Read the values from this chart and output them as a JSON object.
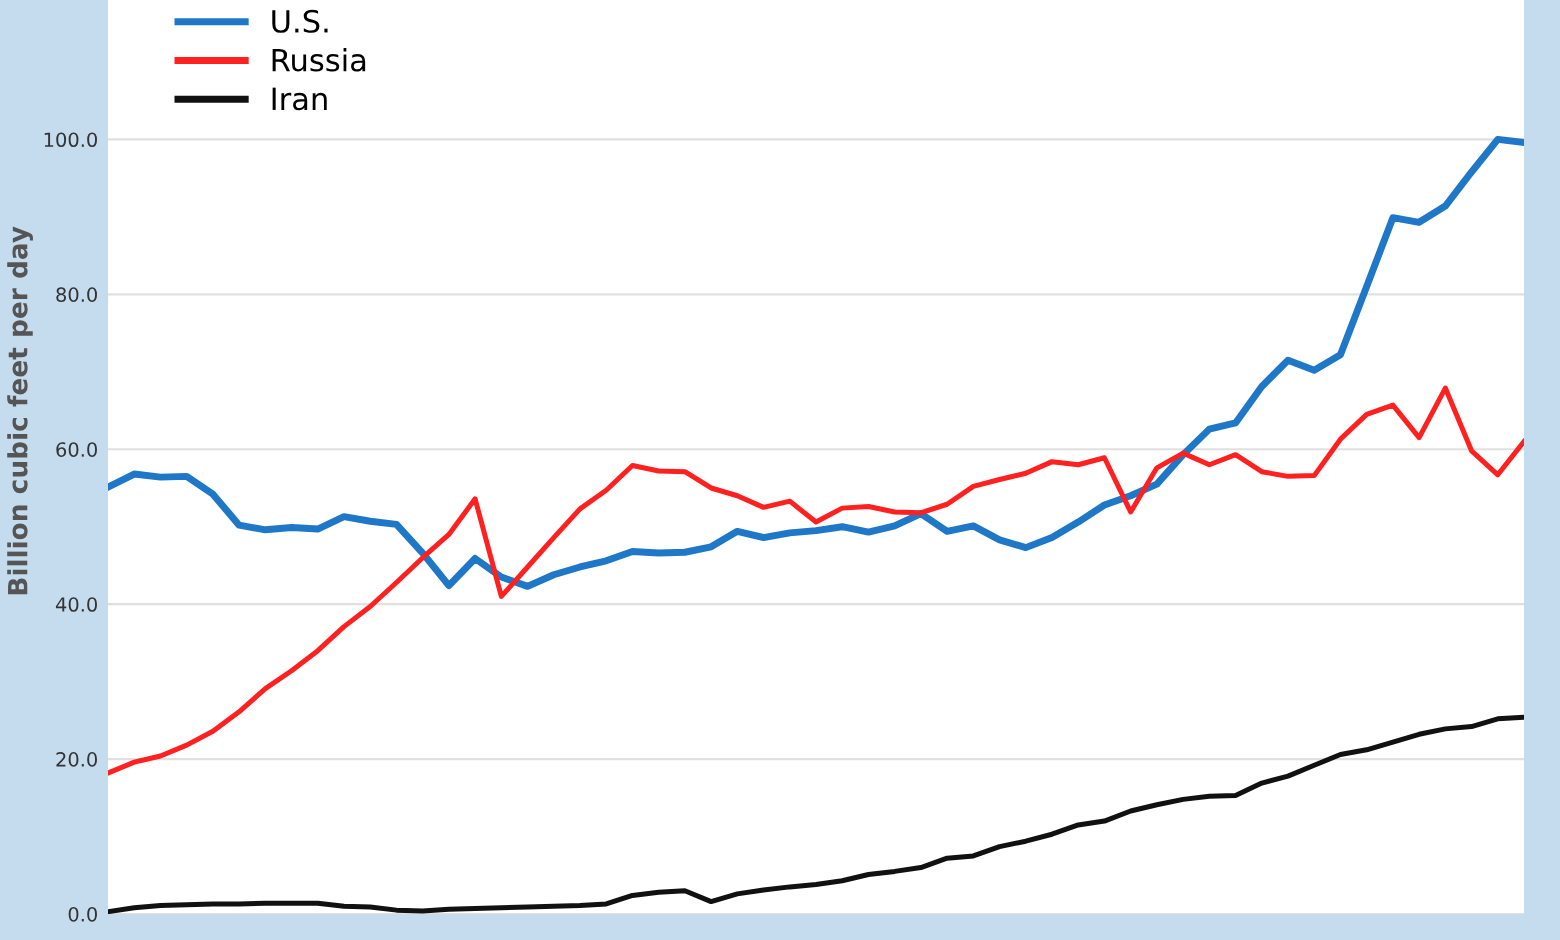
{
  "chart_data": {
    "type": "line",
    "ylabel": "Billion cubic feet per day",
    "categories": [
      null,
      null,
      null,
      null,
      null,
      null,
      null,
      null,
      null,
      null,
      null,
      null,
      null,
      null,
      null,
      null,
      null,
      null,
      null,
      null,
      null,
      null,
      null,
      null,
      null,
      null,
      null,
      null,
      null,
      null,
      null,
      null,
      null,
      null,
      null,
      null,
      null,
      null,
      null,
      null,
      null,
      null,
      null,
      null,
      null,
      null,
      null,
      null,
      null,
      null,
      null,
      null,
      null,
      null,
      null
    ],
    "series": [
      {
        "name": "U.S.",
        "color": "#1f77c8",
        "values": [
          55.1,
          56.8,
          56.4,
          56.5,
          54.2,
          50.2,
          49.6,
          49.9,
          49.7,
          51.3,
          50.7,
          50.3,
          46.6,
          42.4,
          45.9,
          43.5,
          42.3,
          43.8,
          44.8,
          45.6,
          46.8,
          46.6,
          46.7,
          47.4,
          49.4,
          48.6,
          49.2,
          49.5,
          50.0,
          49.3,
          50.1,
          51.7,
          49.4,
          50.1,
          48.3,
          47.3,
          48.6,
          50.6,
          52.8,
          54.0,
          55.5,
          59.3,
          62.6,
          63.4,
          68.1,
          71.5,
          70.2,
          72.2,
          81.0,
          89.9,
          89.3,
          91.4,
          95.8,
          100.0,
          99.6
        ]
      },
      {
        "name": "Russia",
        "color": "#ff2020",
        "values": [
          18.2,
          19.6,
          20.4,
          21.8,
          23.6,
          26.1,
          29.1,
          31.4,
          34.0,
          37.1,
          39.7,
          42.8,
          46.0,
          49.0,
          53.6,
          41.0,
          44.8,
          48.6,
          52.3,
          54.7,
          57.9,
          57.2,
          57.1,
          55.0,
          54.0,
          52.5,
          53.3,
          50.6,
          52.4,
          52.6,
          51.9,
          51.8,
          52.9,
          55.2,
          56.1,
          56.9,
          58.4,
          58.0,
          58.9,
          51.9,
          57.6,
          59.5,
          58.0,
          59.3,
          57.1,
          56.5,
          56.6,
          61.3,
          64.5,
          65.7,
          61.5,
          67.9,
          59.8,
          56.7,
          61.0
        ]
      },
      {
        "name": "Iran",
        "color": "#111111",
        "values": [
          0.3,
          0.8,
          1.1,
          1.2,
          1.3,
          1.3,
          1.4,
          1.4,
          1.4,
          1.0,
          0.9,
          0.5,
          0.4,
          0.6,
          0.7,
          0.8,
          0.9,
          1.0,
          1.1,
          1.3,
          2.4,
          2.8,
          3.0,
          1.6,
          2.6,
          3.1,
          3.5,
          3.8,
          4.3,
          5.1,
          5.5,
          6.0,
          7.2,
          7.5,
          8.7,
          9.4,
          10.3,
          11.5,
          12.0,
          13.3,
          14.1,
          14.8,
          15.2,
          15.3,
          16.9,
          17.8,
          19.2,
          20.6,
          21.2,
          22.2,
          23.2,
          23.9,
          24.2,
          25.2,
          25.4
        ]
      }
    ],
    "ylim": [
      0,
      118
    ],
    "yticks": [
      {
        "value": 0,
        "label": "0.0"
      },
      {
        "value": 20,
        "label": "20.0"
      },
      {
        "value": 40,
        "label": "40.0"
      },
      {
        "value": 60,
        "label": "60.0"
      },
      {
        "value": 80,
        "label": "80.0"
      },
      {
        "value": 100,
        "label": "100.0"
      }
    ],
    "grid": "y",
    "legend": "top left",
    "marker": "none",
    "line_style": "solid"
  }
}
